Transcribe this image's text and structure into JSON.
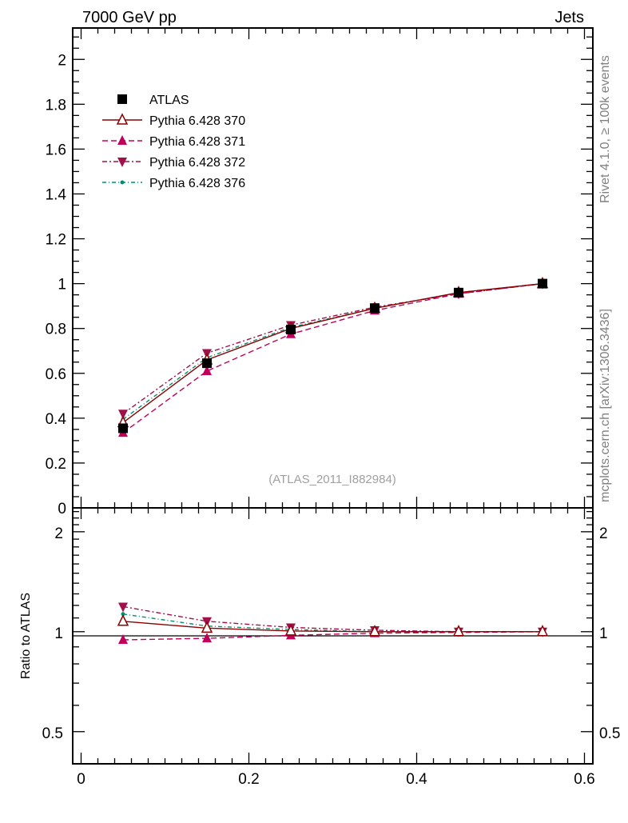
{
  "header": {
    "left": "7000 GeV pp",
    "right": "Jets"
  },
  "side_labels": {
    "rivet": "Rivet 4.1.0, ≥ 100k events",
    "mcplots": "mcplots.cern.ch [arXiv:1306.3436]"
  },
  "analysis_id": "(ATLAS_2011_I882984)",
  "colors": {
    "atlas": "#000000",
    "p370": "#8b0000",
    "p371": "#c0005a",
    "p372": "#a0104a",
    "p376": "#009070"
  },
  "chart_data": [
    {
      "type": "line",
      "title": "",
      "xlabel": "",
      "ylabel": "",
      "xlim": [
        -0.01,
        0.61
      ],
      "ylim": [
        0,
        2.14
      ],
      "y_ticks": [
        "0",
        "0.2",
        "0.4",
        "0.6",
        "0.8",
        "1",
        "1.2",
        "1.4",
        "1.6",
        "1.8",
        "2"
      ],
      "x": [
        0.05,
        0.15,
        0.25,
        0.35,
        0.45,
        0.55
      ],
      "legend": "top-left",
      "series": [
        {
          "name": "ATLAS",
          "marker": "square",
          "values": [
            0.355,
            0.645,
            0.795,
            0.89,
            0.96,
            1.0
          ]
        },
        {
          "name": "Pythia 6.428 370",
          "marker": "triangle-up-open",
          "values": [
            0.38,
            0.66,
            0.8,
            0.89,
            0.96,
            1.0
          ]
        },
        {
          "name": "Pythia 6.428 371",
          "marker": "triangle-up",
          "values": [
            0.335,
            0.61,
            0.775,
            0.88,
            0.955,
            1.0
          ]
        },
        {
          "name": "Pythia 6.428 372",
          "marker": "triangle-down",
          "values": [
            0.42,
            0.69,
            0.815,
            0.895,
            0.955,
            1.0
          ]
        },
        {
          "name": "Pythia 6.428 376",
          "marker": "dot",
          "values": [
            0.395,
            0.67,
            0.805,
            0.89,
            0.96,
            1.0
          ]
        }
      ]
    },
    {
      "type": "line",
      "title": "",
      "ylabel": "Ratio to ATLAS",
      "xlabel": "",
      "xlim": [
        -0.01,
        0.61
      ],
      "ylim": [
        0.4,
        2.36
      ],
      "y_scale": "log",
      "y_ticks": [
        "0.5",
        "1",
        "2"
      ],
      "x_ticks": [
        "0",
        "0.2",
        "0.4",
        "0.6"
      ],
      "x": [
        0.05,
        0.15,
        0.25,
        0.35,
        0.45,
        0.55
      ],
      "series": [
        {
          "name": "Pythia 6.428 370",
          "values": [
            1.075,
            1.025,
            1.005,
            1.0,
            1.0,
            1.0
          ]
        },
        {
          "name": "Pythia 6.428 371",
          "values": [
            0.945,
            0.955,
            0.975,
            0.99,
            0.995,
            1.0
          ]
        },
        {
          "name": "Pythia 6.428 372",
          "values": [
            1.19,
            1.075,
            1.03,
            1.01,
            1.0,
            1.0
          ]
        },
        {
          "name": "Pythia 6.428 376",
          "values": [
            1.13,
            1.04,
            1.015,
            1.0,
            1.0,
            1.0
          ]
        }
      ]
    }
  ]
}
